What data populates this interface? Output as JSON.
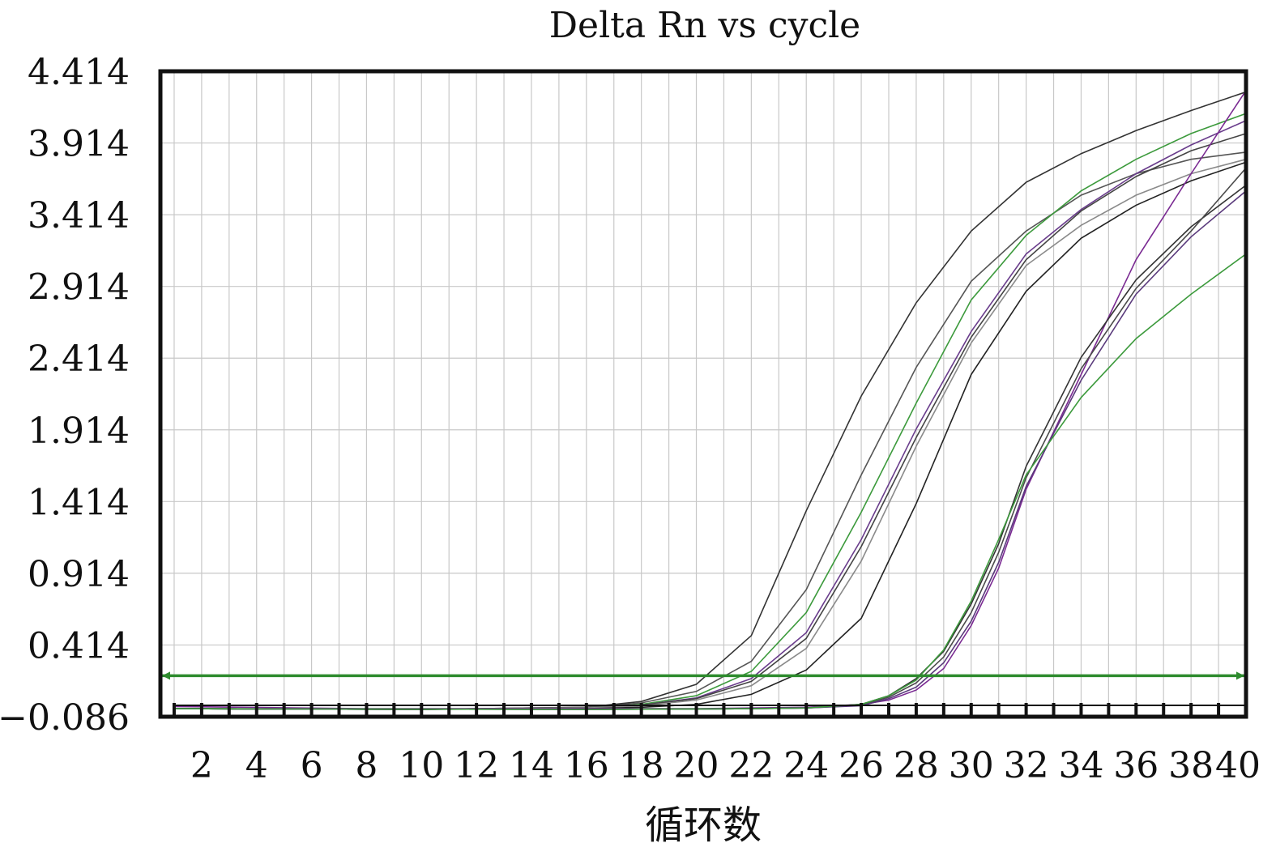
{
  "chart_data": {
    "type": "line",
    "title": "Delta Rn vs cycle",
    "xlabel": "循环数",
    "ylabel": "",
    "xlim": [
      0.5,
      40
    ],
    "ylim": [
      -0.086,
      4.414
    ],
    "x_ticks": [
      2,
      4,
      6,
      8,
      10,
      12,
      14,
      16,
      18,
      20,
      22,
      24,
      26,
      28,
      30,
      32,
      34,
      36,
      38,
      40
    ],
    "x_tick_labels": [
      "2",
      "4",
      "6",
      "8",
      "10",
      "12",
      "14",
      "16",
      "18",
      "20",
      "22",
      "24",
      "26",
      "28",
      "30",
      "32",
      "34",
      "36",
      "38",
      "40"
    ],
    "y_ticks": [
      -0.086,
      0.414,
      0.914,
      1.414,
      1.914,
      2.414,
      2.914,
      3.414,
      3.914,
      4.414
    ],
    "y_tick_labels": [
      "−0.086",
      "0.414",
      "0.914",
      "1.414",
      "1.914",
      "2.414",
      "2.914",
      "3.414",
      "3.914",
      "4.414"
    ],
    "grid": true,
    "threshold": {
      "value": 0.2,
      "color": "#2e8b2e"
    },
    "series": [
      {
        "color": "#333333",
        "points": [
          [
            1,
            -0.03
          ],
          [
            10,
            -0.035
          ],
          [
            16,
            -0.02
          ],
          [
            18,
            0.02
          ],
          [
            20,
            0.14
          ],
          [
            22,
            0.48
          ],
          [
            24,
            1.35
          ],
          [
            26,
            2.15
          ],
          [
            28,
            2.8
          ],
          [
            30,
            3.3
          ],
          [
            32,
            3.64
          ],
          [
            34,
            3.84
          ],
          [
            36,
            4.0
          ],
          [
            38,
            4.14
          ],
          [
            40,
            4.27
          ]
        ]
      },
      {
        "color": "#555555",
        "points": [
          [
            1,
            -0.03
          ],
          [
            10,
            -0.035
          ],
          [
            16,
            -0.02
          ],
          [
            18,
            0.01
          ],
          [
            20,
            0.09
          ],
          [
            22,
            0.3
          ],
          [
            24,
            0.8
          ],
          [
            26,
            1.6
          ],
          [
            28,
            2.35
          ],
          [
            30,
            2.95
          ],
          [
            32,
            3.3
          ],
          [
            34,
            3.55
          ],
          [
            36,
            3.7
          ],
          [
            38,
            3.8
          ],
          [
            40,
            3.85
          ]
        ]
      },
      {
        "color": "#3c9a3c",
        "points": [
          [
            1,
            -0.03
          ],
          [
            10,
            -0.035
          ],
          [
            16,
            -0.025
          ],
          [
            18,
            0.0
          ],
          [
            20,
            0.06
          ],
          [
            22,
            0.23
          ],
          [
            24,
            0.64
          ],
          [
            26,
            1.34
          ],
          [
            28,
            2.1
          ],
          [
            30,
            2.82
          ],
          [
            32,
            3.27
          ],
          [
            34,
            3.58
          ],
          [
            36,
            3.8
          ],
          [
            38,
            3.98
          ],
          [
            40,
            4.12
          ]
        ]
      },
      {
        "color": "#6a3d8c",
        "points": [
          [
            1,
            -0.03
          ],
          [
            10,
            -0.035
          ],
          [
            16,
            -0.025
          ],
          [
            18,
            -0.005
          ],
          [
            20,
            0.045
          ],
          [
            22,
            0.18
          ],
          [
            24,
            0.5
          ],
          [
            26,
            1.15
          ],
          [
            28,
            1.92
          ],
          [
            30,
            2.6
          ],
          [
            32,
            3.14
          ],
          [
            34,
            3.45
          ],
          [
            36,
            3.7
          ],
          [
            38,
            3.9
          ],
          [
            40,
            4.07
          ]
        ]
      },
      {
        "color": "#444444",
        "points": [
          [
            1,
            -0.03
          ],
          [
            10,
            -0.035
          ],
          [
            16,
            -0.025
          ],
          [
            18,
            -0.005
          ],
          [
            20,
            0.04
          ],
          [
            22,
            0.16
          ],
          [
            24,
            0.46
          ],
          [
            26,
            1.1
          ],
          [
            28,
            1.86
          ],
          [
            30,
            2.56
          ],
          [
            32,
            3.1
          ],
          [
            34,
            3.44
          ],
          [
            36,
            3.68
          ],
          [
            38,
            3.86
          ],
          [
            40,
            3.98
          ]
        ]
      },
      {
        "color": "#8a8a8a",
        "points": [
          [
            1,
            -0.03
          ],
          [
            10,
            -0.035
          ],
          [
            16,
            -0.025
          ],
          [
            18,
            -0.01
          ],
          [
            20,
            0.03
          ],
          [
            22,
            0.13
          ],
          [
            24,
            0.39
          ],
          [
            26,
            1.0
          ],
          [
            28,
            1.8
          ],
          [
            30,
            2.52
          ],
          [
            32,
            3.06
          ],
          [
            34,
            3.34
          ],
          [
            36,
            3.55
          ],
          [
            38,
            3.7
          ],
          [
            40,
            3.8
          ]
        ]
      },
      {
        "color": "#222222",
        "points": [
          [
            1,
            -0.03
          ],
          [
            10,
            -0.035
          ],
          [
            16,
            -0.03
          ],
          [
            18,
            -0.02
          ],
          [
            20,
            0.0
          ],
          [
            22,
            0.07
          ],
          [
            24,
            0.24
          ],
          [
            26,
            0.6
          ],
          [
            28,
            1.4
          ],
          [
            30,
            2.3
          ],
          [
            32,
            2.88
          ],
          [
            34,
            3.25
          ],
          [
            36,
            3.48
          ],
          [
            38,
            3.65
          ],
          [
            40,
            3.78
          ]
        ]
      },
      {
        "color": "#7a2a92",
        "points": [
          [
            1,
            -0.015
          ],
          [
            8,
            -0.03
          ],
          [
            16,
            -0.03
          ],
          [
            20,
            -0.03
          ],
          [
            24,
            -0.02
          ],
          [
            26,
            0.0
          ],
          [
            27,
            0.03
          ],
          [
            28,
            0.1
          ],
          [
            29,
            0.25
          ],
          [
            30,
            0.55
          ],
          [
            31,
            0.95
          ],
          [
            32,
            1.5
          ],
          [
            34,
            2.3
          ],
          [
            36,
            3.1
          ],
          [
            38,
            3.7
          ],
          [
            40,
            4.28
          ]
        ]
      },
      {
        "color": "#333333",
        "points": [
          [
            1,
            -0.03
          ],
          [
            16,
            -0.035
          ],
          [
            22,
            -0.03
          ],
          [
            24,
            -0.025
          ],
          [
            26,
            0.0
          ],
          [
            27,
            0.06
          ],
          [
            28,
            0.18
          ],
          [
            29,
            0.37
          ],
          [
            30,
            0.7
          ],
          [
            31,
            1.12
          ],
          [
            32,
            1.66
          ],
          [
            34,
            2.42
          ],
          [
            36,
            2.96
          ],
          [
            38,
            3.33
          ],
          [
            40,
            3.62
          ]
        ]
      },
      {
        "color": "#4a4a4a",
        "points": [
          [
            1,
            -0.03
          ],
          [
            16,
            -0.035
          ],
          [
            22,
            -0.03
          ],
          [
            24,
            -0.025
          ],
          [
            26,
            -0.005
          ],
          [
            27,
            0.05
          ],
          [
            28,
            0.15
          ],
          [
            29,
            0.33
          ],
          [
            30,
            0.64
          ],
          [
            31,
            1.06
          ],
          [
            32,
            1.58
          ],
          [
            34,
            2.34
          ],
          [
            36,
            2.9
          ],
          [
            38,
            3.3
          ],
          [
            40,
            3.74
          ]
        ]
      },
      {
        "color": "#5a3a7c",
        "points": [
          [
            1,
            -0.03
          ],
          [
            16,
            -0.035
          ],
          [
            22,
            -0.03
          ],
          [
            24,
            -0.025
          ],
          [
            26,
            -0.01
          ],
          [
            27,
            0.04
          ],
          [
            28,
            0.12
          ],
          [
            29,
            0.29
          ],
          [
            30,
            0.58
          ],
          [
            31,
            0.99
          ],
          [
            32,
            1.52
          ],
          [
            34,
            2.26
          ],
          [
            36,
            2.86
          ],
          [
            38,
            3.26
          ],
          [
            40,
            3.58
          ]
        ]
      },
      {
        "color": "#3c9a3c",
        "points": [
          [
            1,
            -0.03
          ],
          [
            16,
            -0.035
          ],
          [
            22,
            -0.03
          ],
          [
            24,
            -0.025
          ],
          [
            26,
            0.0
          ],
          [
            27,
            0.06
          ],
          [
            28,
            0.17
          ],
          [
            29,
            0.38
          ],
          [
            30,
            0.72
          ],
          [
            31,
            1.15
          ],
          [
            32,
            1.6
          ],
          [
            34,
            2.14
          ],
          [
            36,
            2.55
          ],
          [
            38,
            2.86
          ],
          [
            40,
            3.14
          ]
        ]
      }
    ]
  }
}
